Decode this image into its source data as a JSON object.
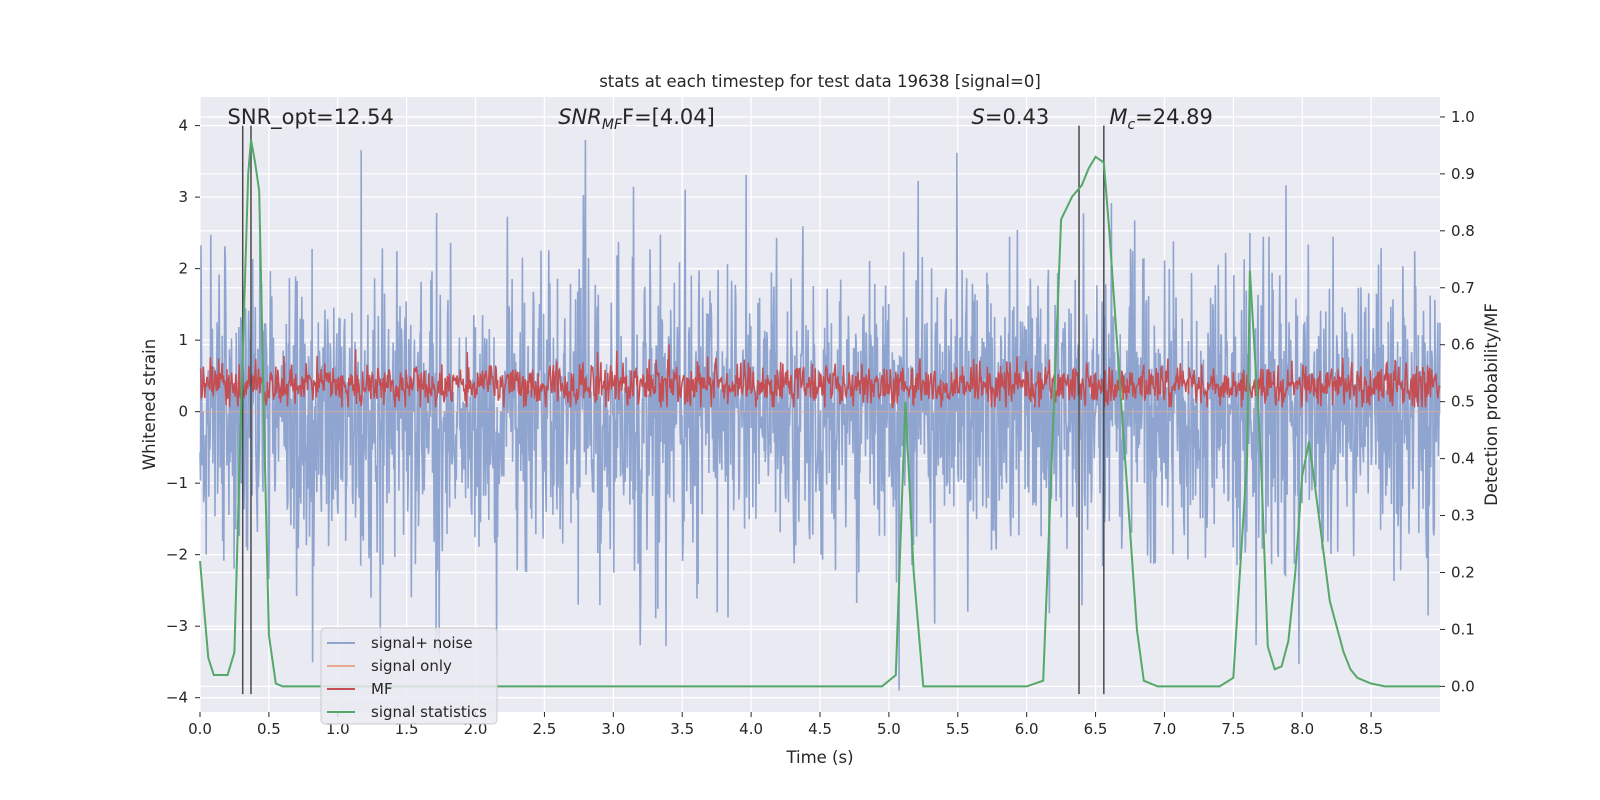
{
  "chart_data": {
    "type": "line",
    "title": "stats at each timestep for test data 19638 [signal=0]",
    "xlabel": "Time (s)",
    "ylabel": "Whitened strain",
    "y2label": "Detection probability/MF",
    "xlim": [
      0.0,
      9.0
    ],
    "ylim": [
      -4.2,
      4.4
    ],
    "y2lim": [
      -0.045,
      1.035
    ],
    "x_ticks": [
      "0.0",
      "0.5",
      "1.0",
      "1.5",
      "2.0",
      "2.5",
      "3.0",
      "3.5",
      "4.0",
      "4.5",
      "5.0",
      "5.5",
      "6.0",
      "6.5",
      "7.0",
      "7.5",
      "8.0",
      "8.5"
    ],
    "y_ticks": [
      "−4",
      "−3",
      "−2",
      "−1",
      "0",
      "1",
      "2",
      "3",
      "4"
    ],
    "y2_ticks": [
      "0.0",
      "0.1",
      "0.2",
      "0.3",
      "0.4",
      "0.5",
      "0.6",
      "0.7",
      "0.8",
      "0.9",
      "1.0"
    ],
    "annotations": [
      {
        "text": "SNR_opt=12.54",
        "x": 0.2
      },
      {
        "text_main": "SNR",
        "text_sub": "MF",
        "text_tail": "F=[4.04]",
        "x": 2.6
      },
      {
        "text_main": "S",
        "text_tail": "=0.43",
        "x": 5.6
      },
      {
        "text_main": "M",
        "text_sub": "c",
        "text_tail": "=24.89",
        "x": 6.6
      }
    ],
    "vertical_lines": [
      0.31,
      0.37,
      6.38,
      6.56
    ],
    "legend": {
      "position": "lower-left",
      "entries": [
        {
          "label": "signal+ noise",
          "color": "#8fa5cf"
        },
        {
          "label": "signal only",
          "color": "#e8a98c"
        },
        {
          "label": "MF",
          "color": "#c44e52"
        },
        {
          "label": "signal statistics",
          "color": "#55a868"
        }
      ]
    },
    "series": [
      {
        "name": "signal+ noise",
        "axis": "left",
        "color": "#8fa5cf",
        "style": "dense noise",
        "approx_range": [
          -3.9,
          3.8
        ],
        "sigma": 1.0
      },
      {
        "name": "signal only",
        "axis": "left",
        "color": "#e8a98c",
        "style": "flat",
        "values": [
          0
        ]
      },
      {
        "name": "MF",
        "axis": "right",
        "color": "#c44e52",
        "style": "dense noise",
        "approx_range": [
          0.49,
          0.6
        ]
      },
      {
        "name": "signal statistics",
        "axis": "right",
        "color": "#55a868",
        "x": [
          0.0,
          0.06,
          0.1,
          0.2,
          0.25,
          0.3,
          0.35,
          0.37,
          0.4,
          0.43,
          0.47,
          0.5,
          0.55,
          0.6,
          0.7,
          1.0,
          2.0,
          3.0,
          4.0,
          4.5,
          4.95,
          5.05,
          5.12,
          5.18,
          5.25,
          5.3,
          5.5,
          6.0,
          6.12,
          6.25,
          6.33,
          6.4,
          6.45,
          6.5,
          6.56,
          6.6,
          6.7,
          6.8,
          6.85,
          6.95,
          7.0,
          7.4,
          7.5,
          7.6,
          7.62,
          7.7,
          7.75,
          7.8,
          7.85,
          7.9,
          7.95,
          8.0,
          8.05,
          8.12,
          8.2,
          8.3,
          8.35,
          8.4,
          8.5,
          8.6,
          8.7,
          9.0
        ],
        "values": [
          0.22,
          0.05,
          0.02,
          0.02,
          0.06,
          0.5,
          0.9,
          0.96,
          0.92,
          0.87,
          0.4,
          0.09,
          0.005,
          0.0,
          0.0,
          0.0,
          0.0,
          0.0,
          0.0,
          0.0,
          0.0,
          0.02,
          0.5,
          0.2,
          0.0,
          0.0,
          0.0,
          0.0,
          0.01,
          0.82,
          0.86,
          0.88,
          0.91,
          0.93,
          0.92,
          0.8,
          0.45,
          0.1,
          0.01,
          0.0,
          0.0,
          0.0,
          0.015,
          0.4,
          0.73,
          0.4,
          0.07,
          0.03,
          0.035,
          0.08,
          0.2,
          0.37,
          0.43,
          0.3,
          0.15,
          0.06,
          0.03,
          0.015,
          0.005,
          0.0,
          0.0,
          0.0
        ]
      }
    ]
  }
}
